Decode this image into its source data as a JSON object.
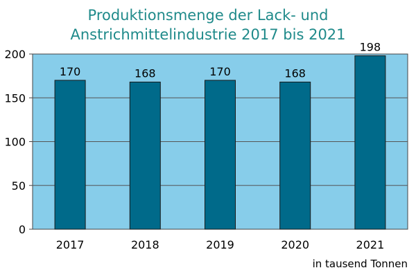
{
  "colors": {
    "plot_background": "#87cdea",
    "bar_fill": "#006a8a",
    "title_color": "#1f8a8a",
    "gridline": "#555555"
  },
  "chart_data": {
    "type": "bar",
    "title_lines": [
      "Produktionsmenge der Lack- und",
      "Anstrichmittelindustrie 2017 bis 2021"
    ],
    "categories": [
      "2017",
      "2018",
      "2019",
      "2020",
      "2021"
    ],
    "values": [
      170,
      168,
      170,
      168,
      198
    ],
    "data_labels": [
      "170",
      "168",
      "170",
      "168",
      "198"
    ],
    "y_ticks": [
      "0",
      "50",
      "100",
      "150",
      "200"
    ],
    "ylim": [
      0,
      200
    ],
    "unit_note": "in tausend Tonnen",
    "grid": true
  }
}
